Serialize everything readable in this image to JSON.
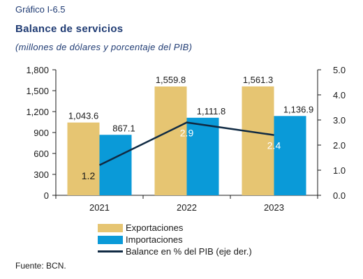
{
  "figure_number": "Gráfico I-6.5",
  "title": "Balance de servicios",
  "subtitle": "(millones de dólares y porcentaje del PIB)",
  "source": "Fuente: BCN.",
  "colors": {
    "exportaciones": "#e6c572",
    "importaciones": "#0a9ad8",
    "balance": "#102a43",
    "axis": "#1a1a1a"
  },
  "chart_data": {
    "type": "bar",
    "categories": [
      "2021",
      "2022",
      "2023"
    ],
    "series": [
      {
        "name": "Exportaciones",
        "type": "bar",
        "axis": "left",
        "values": [
          1043.6,
          1559.8,
          1561.3
        ],
        "labels": [
          "1,043.6",
          "1,559.8",
          "1,561.3"
        ]
      },
      {
        "name": "Importaciones",
        "type": "bar",
        "axis": "left",
        "values": [
          867.1,
          1111.8,
          1136.9
        ],
        "labels": [
          "867.1",
          "1,111.8",
          "1,136.9"
        ]
      },
      {
        "name": "Balance en % del PIB (eje der.)",
        "type": "line",
        "axis": "right",
        "values": [
          1.2,
          2.9,
          2.4
        ],
        "labels": [
          "1.2",
          "2.9",
          "2.4"
        ]
      }
    ],
    "y_left": {
      "range": [
        0,
        1800
      ],
      "ticks": [
        0,
        300,
        600,
        900,
        1200,
        1500,
        1800
      ],
      "tick_labels": [
        "0",
        "300",
        "600",
        "900",
        "1,200",
        "1,500",
        "1,800"
      ]
    },
    "y_right": {
      "range": [
        0,
        5
      ],
      "ticks": [
        0,
        1,
        2,
        3,
        4,
        5
      ],
      "tick_labels": [
        "0.0",
        "1.0",
        "2.0",
        "3.0",
        "4.0",
        "5.0"
      ]
    },
    "grid": false,
    "legend_position": "bottom"
  }
}
